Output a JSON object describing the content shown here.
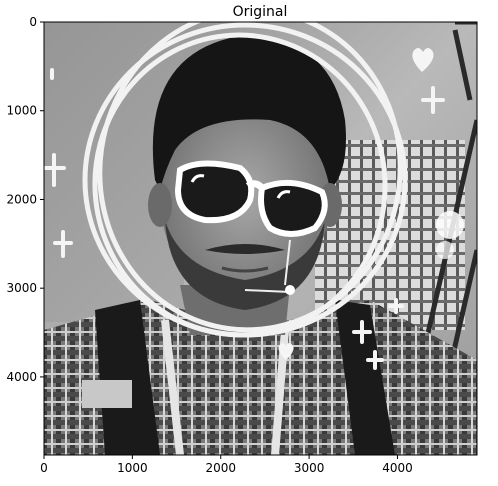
{
  "figure": {
    "title": "Original",
    "xaxis": {
      "min": 0,
      "max": 4900,
      "ticks": [
        0,
        1000,
        2000,
        3000,
        4000
      ]
    },
    "yaxis": {
      "min": 0,
      "max": 4880,
      "ticks": [
        0,
        1000,
        2000,
        3000,
        4000
      ],
      "inverted": true
    },
    "colormap": "gray",
    "frame_color": "#000000"
  }
}
